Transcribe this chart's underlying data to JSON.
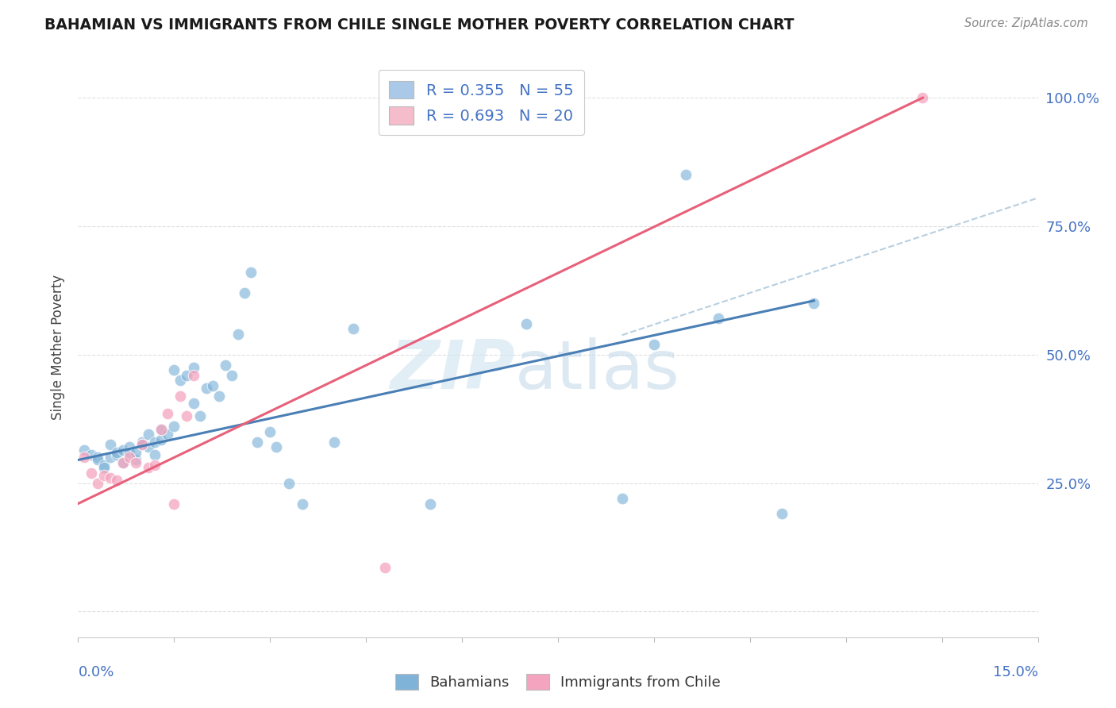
{
  "title": "BAHAMIAN VS IMMIGRANTS FROM CHILE SINGLE MOTHER POVERTY CORRELATION CHART",
  "source": "Source: ZipAtlas.com",
  "ylabel": "Single Mother Poverty",
  "legend_bahamian": {
    "R": 0.355,
    "N": 55,
    "color": "#aac9e8"
  },
  "legend_chile": {
    "R": 0.693,
    "N": 20,
    "color": "#f5bccb"
  },
  "bahamian_color": "#7fb3d8",
  "chile_color": "#f4a4be",
  "bahamian_line_color": "#4a7fb5",
  "chile_line_color": "#e8607a",
  "dashed_line_color": "#b8cfe0",
  "xmin": 0.0,
  "xmax": 0.15,
  "ymin": -0.05,
  "ymax": 1.08,
  "ytick_vals": [
    0.0,
    0.25,
    0.5,
    0.75,
    1.0
  ],
  "ytick_labels": [
    "",
    "25.0%",
    "50.0%",
    "75.0%",
    "100.0%"
  ],
  "bahamian_line": [
    0.0,
    0.295,
    0.115,
    0.605
  ],
  "chile_line": [
    0.0,
    0.21,
    0.132,
    1.0
  ],
  "dashed_line": [
    0.085,
    0.538,
    0.15,
    0.805
  ],
  "bah_x": [
    0.001,
    0.002,
    0.003,
    0.003,
    0.004,
    0.004,
    0.005,
    0.005,
    0.006,
    0.006,
    0.007,
    0.007,
    0.008,
    0.008,
    0.009,
    0.009,
    0.01,
    0.01,
    0.011,
    0.011,
    0.012,
    0.012,
    0.013,
    0.013,
    0.014,
    0.015,
    0.015,
    0.016,
    0.017,
    0.018,
    0.018,
    0.019,
    0.02,
    0.021,
    0.022,
    0.023,
    0.024,
    0.025,
    0.026,
    0.027,
    0.028,
    0.03,
    0.031,
    0.033,
    0.035,
    0.04,
    0.043,
    0.055,
    0.07,
    0.085,
    0.09,
    0.095,
    0.1,
    0.11,
    0.115
  ],
  "bah_y": [
    0.315,
    0.305,
    0.3,
    0.295,
    0.285,
    0.28,
    0.3,
    0.325,
    0.305,
    0.31,
    0.29,
    0.315,
    0.32,
    0.31,
    0.295,
    0.31,
    0.33,
    0.325,
    0.32,
    0.345,
    0.33,
    0.305,
    0.335,
    0.355,
    0.345,
    0.47,
    0.36,
    0.45,
    0.46,
    0.475,
    0.405,
    0.38,
    0.435,
    0.44,
    0.42,
    0.48,
    0.46,
    0.54,
    0.62,
    0.66,
    0.33,
    0.35,
    0.32,
    0.25,
    0.21,
    0.33,
    0.55,
    0.21,
    0.56,
    0.22,
    0.52,
    0.85,
    0.57,
    0.19,
    0.6
  ],
  "chile_x": [
    0.001,
    0.002,
    0.003,
    0.004,
    0.005,
    0.006,
    0.007,
    0.008,
    0.009,
    0.01,
    0.011,
    0.012,
    0.013,
    0.014,
    0.015,
    0.016,
    0.017,
    0.018,
    0.048,
    0.132
  ],
  "chile_y": [
    0.3,
    0.27,
    0.25,
    0.265,
    0.26,
    0.255,
    0.29,
    0.3,
    0.29,
    0.325,
    0.28,
    0.285,
    0.355,
    0.385,
    0.21,
    0.42,
    0.38,
    0.46,
    0.085,
    1.0
  ],
  "watermark_zip_color": "#d0e4f0",
  "watermark_atlas_color": "#c0d8e8",
  "grid_color": "#e0e0e0",
  "right_label_color": "#4472c4",
  "title_color": "#1a1a1a",
  "source_color": "#888888"
}
